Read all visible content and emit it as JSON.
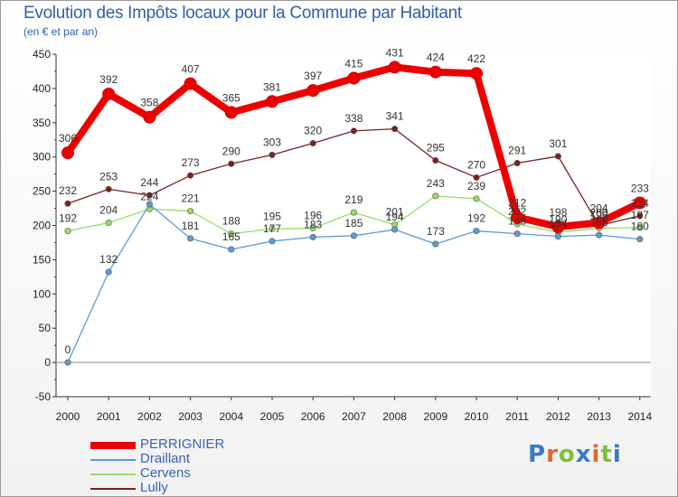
{
  "title": "Evolution des Impôts locaux pour la Commune par Habitant",
  "subtitle": "(en € et par an)",
  "logo": {
    "text": "Proxiti",
    "colors": [
      "#3a7ac8",
      "#e06a2a",
      "#7fbf3f",
      "#3a7ac8",
      "#e06a2a",
      "#7fbf3f",
      "#3a7ac8"
    ]
  },
  "chart_data": {
    "type": "line",
    "title": "Evolution des Impôts locaux pour la Commune par Habitant",
    "subtitle": "(en € et par an)",
    "x": [
      "2000",
      "2001",
      "2002",
      "2003",
      "2004",
      "2005",
      "2006",
      "2007",
      "2008",
      "2009",
      "2010",
      "2011",
      "2012",
      "2013",
      "2014"
    ],
    "ylim": [
      -50,
      450
    ],
    "yticks": [
      -50,
      0,
      50,
      100,
      150,
      200,
      250,
      300,
      350,
      400,
      450
    ],
    "grid": false,
    "legend_position": "bottom-left",
    "series": [
      {
        "name": "PERRIGNIER",
        "color": "#ee0000",
        "values": [
          306,
          392,
          358,
          407,
          365,
          381,
          397,
          415,
          431,
          424,
          422,
          212,
          198,
          204,
          233
        ],
        "labels": [
          "306",
          "392",
          "358",
          "407",
          "365",
          "381",
          "397",
          "415",
          "431",
          "424",
          "422",
          "212",
          "198",
          "204",
          "233"
        ]
      },
      {
        "name": "Draillant",
        "color": "#5b9bd5",
        "values": [
          0,
          132,
          231,
          181,
          165,
          177,
          183,
          185,
          194,
          173,
          192,
          188,
          184,
          186,
          180
        ],
        "labels": [
          "0",
          "132",
          "",
          "181",
          "165",
          "177",
          "183",
          "185",
          "194",
          "173",
          "192",
          "188",
          "184",
          "186",
          "180"
        ]
      },
      {
        "name": "Cervens",
        "color": "#99dd66",
        "values": [
          192,
          204,
          224,
          221,
          188,
          195,
          196,
          219,
          201,
          243,
          239,
          202,
          190,
          196,
          197
        ],
        "labels": [
          "192",
          "204",
          "224",
          "221",
          "188",
          "195",
          "196",
          "219",
          "201",
          "243",
          "239",
          "202",
          "190",
          "196",
          "197"
        ]
      },
      {
        "name": "Lully",
        "color": "#7a2020",
        "values": [
          232,
          253,
          244,
          273,
          290,
          303,
          320,
          338,
          341,
          295,
          270,
          291,
          301,
          200,
          214
        ],
        "labels": [
          "232",
          "253",
          "244",
          "273",
          "290",
          "303",
          "320",
          "338",
          "341",
          "295",
          "270",
          "291",
          "301",
          "200",
          "214"
        ]
      }
    ]
  }
}
